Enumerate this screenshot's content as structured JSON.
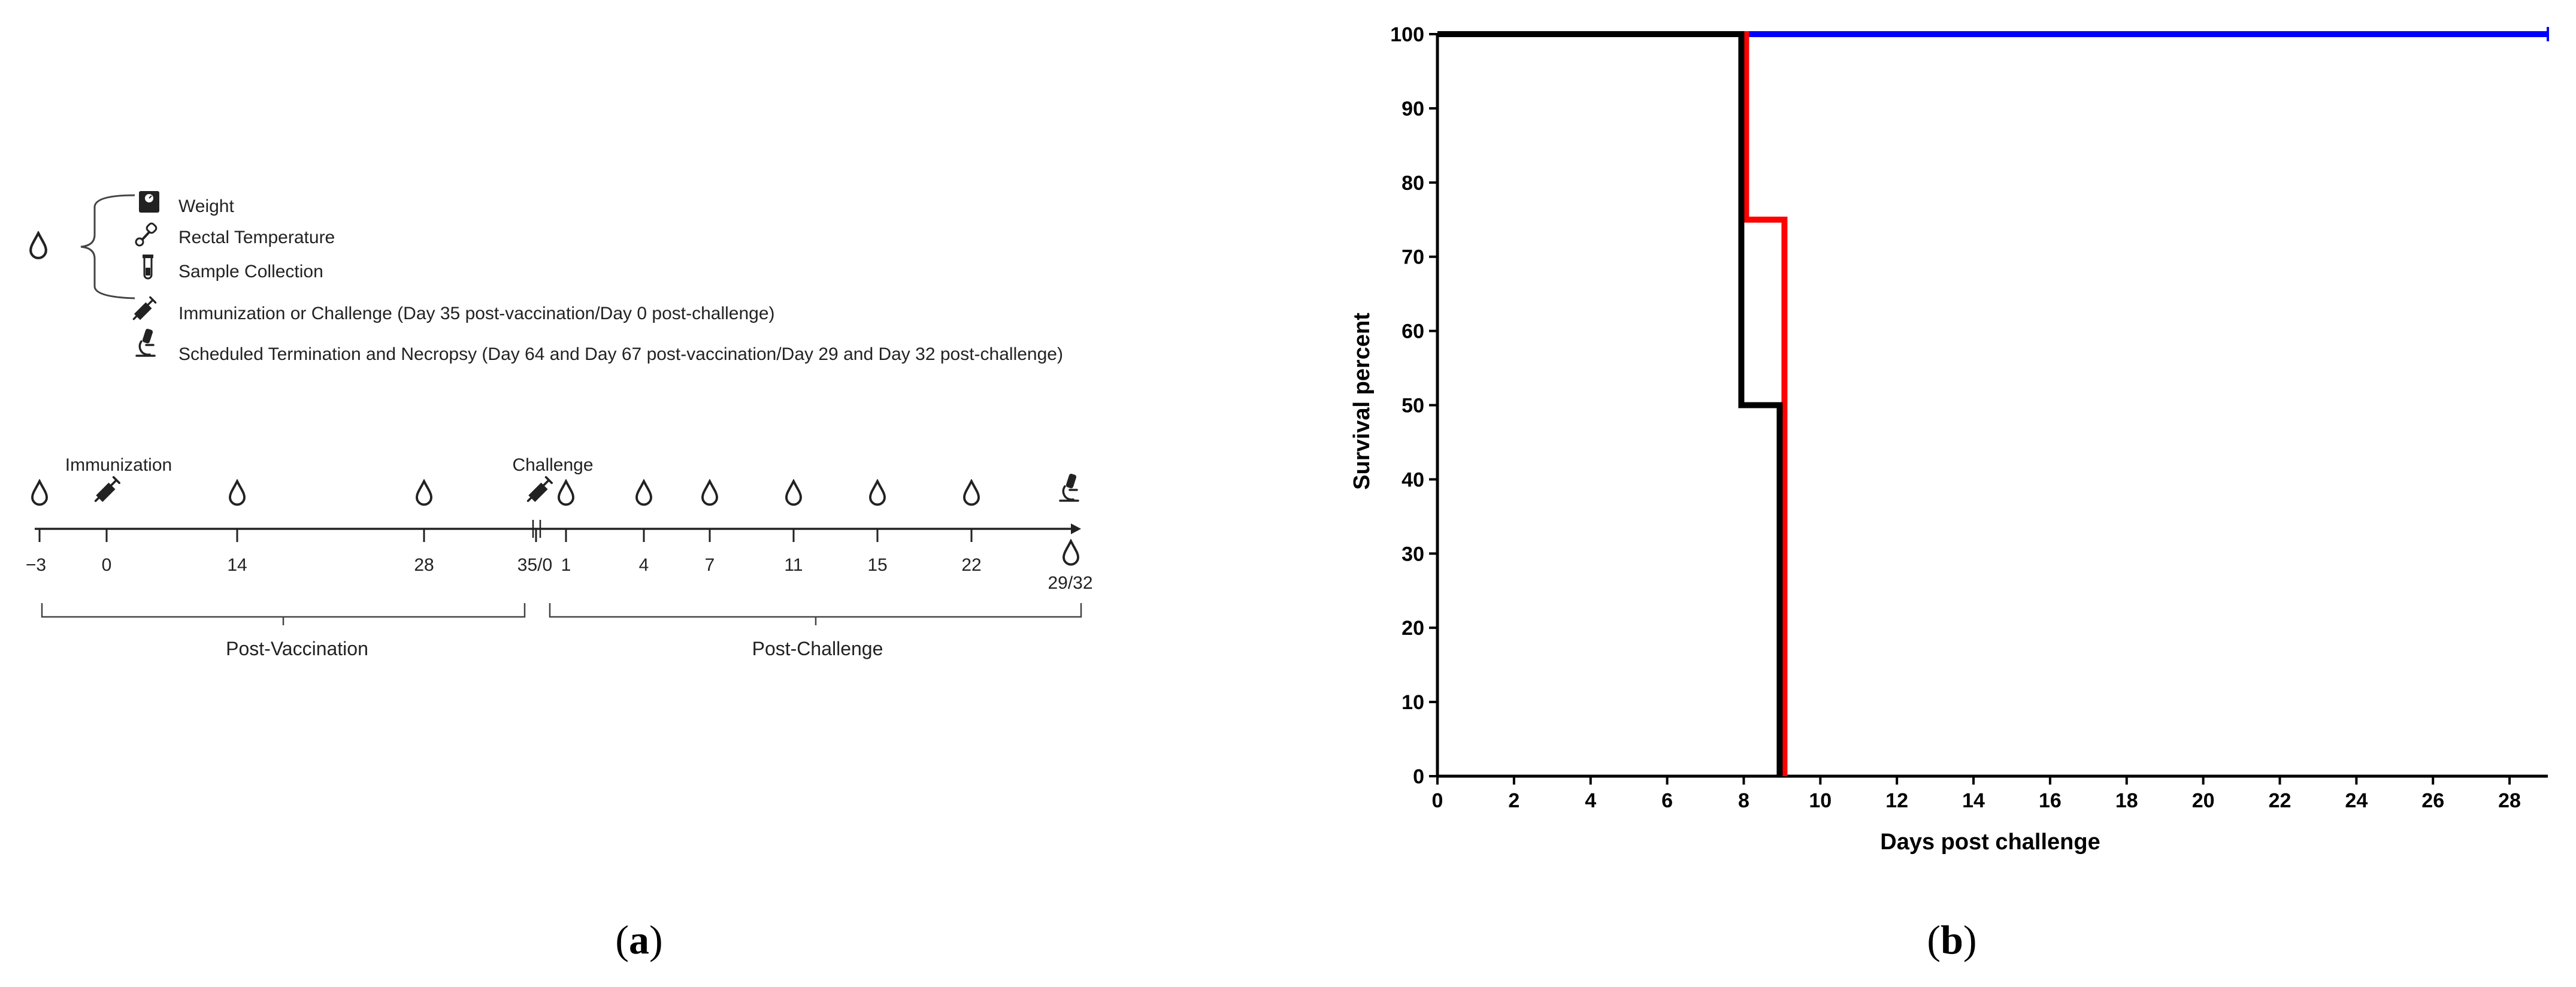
{
  "panel_a": {
    "caption": "a",
    "legend": [
      {
        "icon": "scale-icon",
        "label": "Weight"
      },
      {
        "icon": "thermometer-icon",
        "label": "Rectal Temperature"
      },
      {
        "icon": "test-tube-icon",
        "label": "Sample Collection"
      },
      {
        "icon": "syringe-icon",
        "label": "Immunization or Challenge (Day 35 post-vaccination/Day 0 post-challenge)"
      },
      {
        "icon": "microscope-icon",
        "label": "Scheduled Termination and Necropsy (Day 64 and Day 67 post-vaccination/Day 29 and Day 32 post-challenge)"
      }
    ],
    "timeline": {
      "immunization_label": "Immunization",
      "challenge_label": "Challenge",
      "ticks": [
        "−3",
        "0",
        "14",
        "28",
        "35/0",
        "1",
        "4",
        "7",
        "11",
        "15",
        "22",
        "29/32"
      ],
      "phases": [
        "Post-Vaccination",
        "Post-Challenge"
      ]
    }
  },
  "panel_b": {
    "caption": "b"
  },
  "chart_data": {
    "type": "line",
    "subtype": "kaplan-meier step",
    "title": "",
    "xlabel": "Days post challenge",
    "ylabel": "Survival percent",
    "xlim": [
      0,
      29
    ],
    "ylim": [
      0,
      100
    ],
    "xticks": [
      0,
      2,
      4,
      6,
      8,
      10,
      12,
      14,
      16,
      18,
      20,
      22,
      24,
      26,
      28
    ],
    "yticks": [
      0,
      10,
      20,
      30,
      40,
      50,
      60,
      70,
      80,
      90,
      100
    ],
    "grid": false,
    "series": [
      {
        "color": "#0000ff",
        "x": [
          0,
          29
        ],
        "y": [
          100,
          100
        ]
      },
      {
        "color": "#ff0000",
        "x": [
          0,
          8,
          8,
          9,
          9
        ],
        "y": [
          100,
          100,
          75,
          75,
          0
        ]
      },
      {
        "color": "#000000",
        "x": [
          0,
          8,
          8,
          9,
          9
        ],
        "y": [
          100,
          100,
          50,
          50,
          0
        ]
      }
    ]
  }
}
